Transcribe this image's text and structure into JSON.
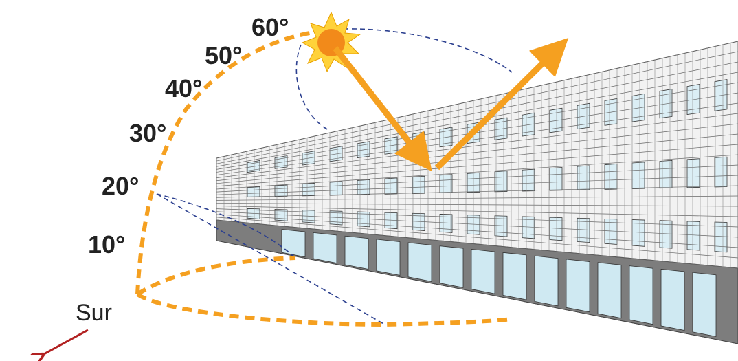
{
  "angle_labels": [
    "10°",
    "20°",
    "30°",
    "40°",
    "50°",
    "60°"
  ],
  "direction_label": "Sur"
}
